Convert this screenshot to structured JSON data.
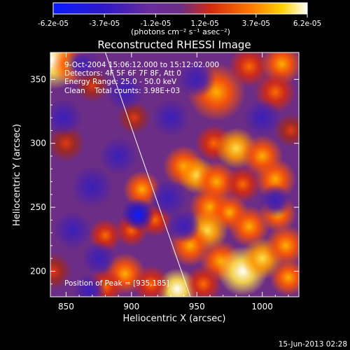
{
  "chart_data": {
    "type": "heatmap",
    "title": "Reconstructed RHESSI Image",
    "xlabel": "Heliocentric X (arcsec)",
    "ylabel": "Heliocentric Y (arcsec)",
    "xlim": [
      838,
      1028
    ],
    "ylim": [
      180,
      371
    ],
    "x_ticks": [
      850,
      900,
      950,
      1000
    ],
    "y_ticks": [
      200,
      250,
      300,
      350
    ],
    "colorbar": {
      "ticks": [
        "-6.2e-05",
        "-3.7e-05",
        "-1.2e-05",
        "1.2e-05",
        "3.7e-05",
        "6.2e-05"
      ],
      "tick_values": [
        -6.2e-05,
        -3.7e-05,
        -1.2e-05,
        1.2e-05,
        3.7e-05,
        6.2e-05
      ],
      "range": [
        -6.2e-05,
        6.2e-05
      ],
      "unit_label": "(photons cm⁻² s⁻¹ asec⁻²)"
    },
    "annotations": [
      "9-Oct-2004 15:06:12.000 to 15:12:02.000",
      "Detectors: 4F 5F 6F 7F 8F, Att 0",
      "Energy Range: 25.0 - 50.0 keV",
      "Clean    Total counts: 3.98E+03",
      "Position of Peak = [935,185]"
    ],
    "limb_line": [
      [
        880,
        371
      ],
      [
        945,
        180
      ]
    ],
    "peak": [
      935,
      185
    ],
    "blobs": [
      [
        840,
        365,
        14,
        0.95
      ],
      [
        855,
        362,
        10,
        0.7
      ],
      [
        965,
        340,
        14,
        0.6
      ],
      [
        990,
        360,
        10,
        0.5
      ],
      [
        1015,
        362,
        10,
        0.75
      ],
      [
        1010,
        340,
        10,
        0.45
      ],
      [
        963,
        300,
        9,
        0.55
      ],
      [
        980,
        296,
        10,
        0.9
      ],
      [
        940,
        282,
        10,
        0.65
      ],
      [
        950,
        275,
        9,
        0.9
      ],
      [
        965,
        270,
        10,
        0.7
      ],
      [
        1000,
        290,
        10,
        0.6
      ],
      [
        1010,
        272,
        10,
        0.75
      ],
      [
        985,
        268,
        9,
        0.5
      ],
      [
        960,
        250,
        10,
        0.65
      ],
      [
        975,
        246,
        9,
        0.75
      ],
      [
        958,
        232,
        10,
        0.8
      ],
      [
        990,
        235,
        10,
        0.7
      ],
      [
        1012,
        245,
        9,
        0.65
      ],
      [
        945,
        220,
        10,
        0.7
      ],
      [
        968,
        208,
        10,
        0.65
      ],
      [
        985,
        200,
        12,
        0.95
      ],
      [
        1000,
        210,
        10,
        0.9
      ],
      [
        1018,
        220,
        10,
        0.7
      ],
      [
        1020,
        195,
        9,
        0.6
      ],
      [
        935,
        186,
        10,
        1.0
      ],
      [
        955,
        190,
        9,
        0.55
      ],
      [
        895,
        198,
        10,
        0.6
      ],
      [
        915,
        190,
        9,
        0.55
      ],
      [
        880,
        188,
        9,
        0.45
      ],
      [
        908,
        264,
        9,
        0.6
      ],
      [
        918,
        240,
        8,
        0.5
      ],
      [
        880,
        228,
        8,
        0.4
      ],
      [
        902,
        320,
        8,
        0.35
      ],
      [
        850,
        300,
        9,
        0.35
      ],
      [
        870,
        345,
        8,
        0.3
      ],
      [
        1022,
        310,
        8,
        0.35
      ],
      [
        840,
        200,
        9,
        0.35
      ],
      [
        900,
        232,
        8,
        0.4
      ],
      [
        905,
        244,
        8,
        -1.0
      ],
      [
        870,
        266,
        10,
        -0.5
      ],
      [
        890,
        290,
        9,
        -0.45
      ],
      [
        848,
        320,
        9,
        -0.45
      ],
      [
        895,
        340,
        9,
        -0.45
      ],
      [
        862,
        362,
        8,
        -0.4
      ],
      [
        930,
        320,
        9,
        -0.4
      ],
      [
        928,
        257,
        9,
        -0.45
      ],
      [
        875,
        210,
        8,
        -0.4
      ],
      [
        1000,
        320,
        9,
        -0.35
      ],
      [
        1010,
        255,
        8,
        -0.35
      ],
      [
        855,
        232,
        9,
        -0.45
      ],
      [
        950,
        350,
        9,
        -0.4
      ],
      [
        940,
        235,
        8,
        -0.35
      ],
      [
        868,
        185,
        8,
        -0.35
      ]
    ]
  },
  "footer": {
    "date": "15-Jun-2013 02:28"
  }
}
